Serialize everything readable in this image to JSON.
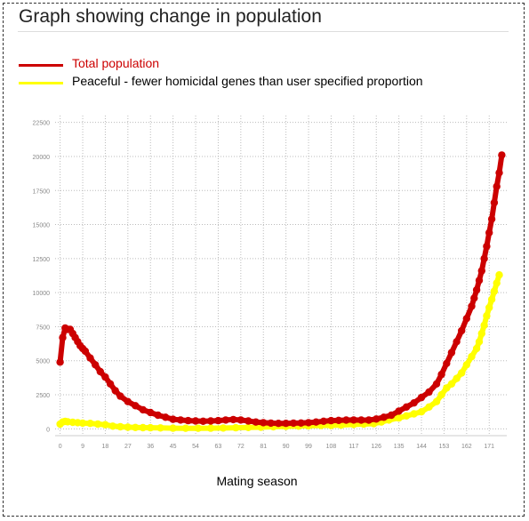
{
  "chart_data": {
    "type": "line",
    "title": "Graph showing change in population",
    "xlabel": "Mating season",
    "ylabel": "",
    "xlim": [
      -2,
      178
    ],
    "ylim": [
      -500,
      23000
    ],
    "x_ticks": [
      0,
      9,
      18,
      27,
      36,
      45,
      54,
      63,
      72,
      81,
      90,
      99,
      108,
      117,
      126,
      135,
      144,
      153,
      162,
      171
    ],
    "y_ticks": [
      0,
      2500,
      5000,
      7500,
      10000,
      12500,
      15000,
      17500,
      20000,
      22500
    ],
    "grid": true,
    "legend_position": "top-left",
    "series": [
      {
        "name": "Total population",
        "color": "#cc0000",
        "points": [
          [
            0,
            4900
          ],
          [
            1,
            6700
          ],
          [
            2,
            7400
          ],
          [
            3,
            7300
          ],
          [
            4,
            7300
          ],
          [
            5,
            7000
          ],
          [
            6,
            6700
          ],
          [
            7,
            6400
          ],
          [
            8,
            6100
          ],
          [
            9,
            5900
          ],
          [
            10,
            5700
          ],
          [
            12,
            5200
          ],
          [
            14,
            4700
          ],
          [
            16,
            4200
          ],
          [
            18,
            3800
          ],
          [
            20,
            3300
          ],
          [
            22,
            2800
          ],
          [
            24,
            2400
          ],
          [
            27,
            2000
          ],
          [
            30,
            1700
          ],
          [
            33,
            1400
          ],
          [
            36,
            1200
          ],
          [
            39,
            1000
          ],
          [
            42,
            850
          ],
          [
            45,
            700
          ],
          [
            48,
            650
          ],
          [
            51,
            600
          ],
          [
            54,
            580
          ],
          [
            57,
            560
          ],
          [
            60,
            580
          ],
          [
            63,
            600
          ],
          [
            66,
            650
          ],
          [
            69,
            680
          ],
          [
            72,
            650
          ],
          [
            75,
            580
          ],
          [
            78,
            500
          ],
          [
            81,
            450
          ],
          [
            84,
            420
          ],
          [
            87,
            400
          ],
          [
            90,
            400
          ],
          [
            93,
            420
          ],
          [
            96,
            430
          ],
          [
            99,
            450
          ],
          [
            102,
            500
          ],
          [
            105,
            560
          ],
          [
            108,
            600
          ],
          [
            111,
            620
          ],
          [
            114,
            640
          ],
          [
            117,
            650
          ],
          [
            120,
            640
          ],
          [
            123,
            640
          ],
          [
            126,
            720
          ],
          [
            129,
            850
          ],
          [
            132,
            1000
          ],
          [
            135,
            1300
          ],
          [
            138,
            1600
          ],
          [
            141,
            1900
          ],
          [
            144,
            2300
          ],
          [
            147,
            2700
          ],
          [
            150,
            3300
          ],
          [
            152,
            4000
          ],
          [
            154,
            4800
          ],
          [
            156,
            5600
          ],
          [
            158,
            6400
          ],
          [
            160,
            7200
          ],
          [
            162,
            8100
          ],
          [
            164,
            9000
          ],
          [
            165,
            9600
          ],
          [
            166,
            10200
          ],
          [
            167,
            10900
          ],
          [
            168,
            11600
          ],
          [
            169,
            12500
          ],
          [
            170,
            13400
          ],
          [
            171,
            14400
          ],
          [
            172,
            15400
          ],
          [
            173,
            16600
          ],
          [
            174,
            17800
          ],
          [
            175,
            18800
          ],
          [
            176,
            20100
          ]
        ]
      },
      {
        "name": "Peaceful - fewer homicidal genes than user specified proportion",
        "color": "#ffff00",
        "points": [
          [
            0,
            350
          ],
          [
            1,
            500
          ],
          [
            2,
            550
          ],
          [
            3,
            520
          ],
          [
            5,
            480
          ],
          [
            7,
            450
          ],
          [
            9,
            420
          ],
          [
            12,
            400
          ],
          [
            15,
            350
          ],
          [
            18,
            300
          ],
          [
            21,
            200
          ],
          [
            24,
            150
          ],
          [
            27,
            120
          ],
          [
            30,
            100
          ],
          [
            33,
            90
          ],
          [
            36,
            80
          ],
          [
            40,
            70
          ],
          [
            45,
            50
          ],
          [
            50,
            40
          ],
          [
            55,
            40
          ],
          [
            60,
            50
          ],
          [
            65,
            60
          ],
          [
            70,
            80
          ],
          [
            75,
            100
          ],
          [
            80,
            120
          ],
          [
            85,
            150
          ],
          [
            90,
            180
          ],
          [
            95,
            200
          ],
          [
            99,
            220
          ],
          [
            104,
            250
          ],
          [
            108,
            250
          ],
          [
            112,
            280
          ],
          [
            117,
            320
          ],
          [
            121,
            350
          ],
          [
            125,
            380
          ],
          [
            128,
            500
          ],
          [
            131,
            650
          ],
          [
            135,
            800
          ],
          [
            138,
            950
          ],
          [
            141,
            1100
          ],
          [
            144,
            1250
          ],
          [
            147,
            1600
          ],
          [
            150,
            2000
          ],
          [
            152,
            2500
          ],
          [
            154,
            3000
          ],
          [
            156,
            3300
          ],
          [
            158,
            3700
          ],
          [
            160,
            4100
          ],
          [
            162,
            4700
          ],
          [
            164,
            5300
          ],
          [
            166,
            5900
          ],
          [
            167,
            6400
          ],
          [
            168,
            7000
          ],
          [
            169,
            7600
          ],
          [
            170,
            8300
          ],
          [
            171,
            8900
          ],
          [
            172,
            9500
          ],
          [
            173,
            10100
          ],
          [
            174,
            10700
          ],
          [
            175,
            11300
          ]
        ]
      }
    ]
  }
}
